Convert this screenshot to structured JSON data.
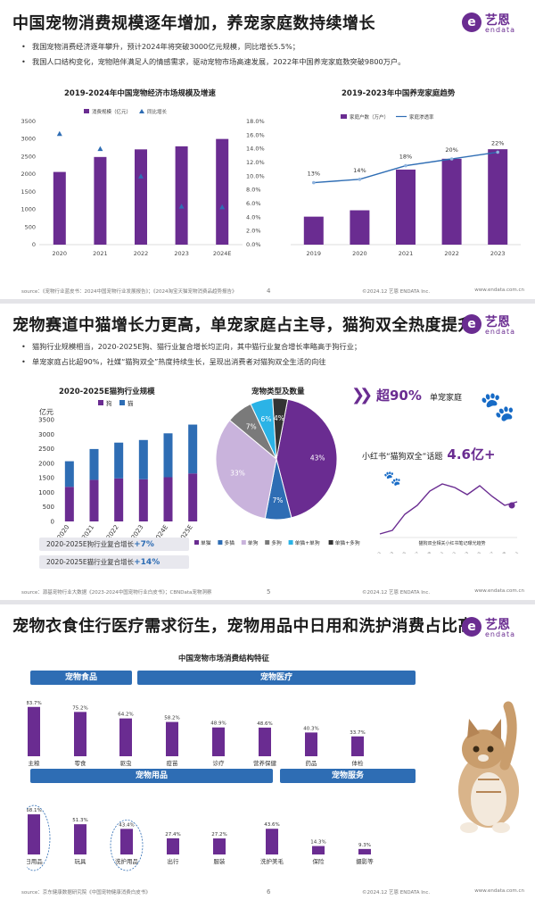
{
  "brand": {
    "mark": "e",
    "cn": "艺恩",
    "en": "endata"
  },
  "colors": {
    "purple": "#6a2c91",
    "blue": "#2e6db4",
    "lavender": "#c9b3dc",
    "gray": "#7a7a7a",
    "cyan": "#2bb3e6",
    "dark": "#333333"
  },
  "slide1": {
    "title": "中国宠物消费规模逐年增加，养宠家庭数持续增长",
    "bullets": [
      "我国宠物消费经济逐年攀升，预计2024年将突破3000亿元规模，同比增长5.5%；",
      "我国人口结构变化，宠物陪伴满足人的情感需求，驱动宠物市场高速发展，2022年中国养宠家庭数突破9800万户。"
    ],
    "footer": {
      "source": "source：《宠物行业蓝皮书：2024中国宠物行业发展报告》；《2024淘宝天猫宠物消费品趋势报告》",
      "page": "4",
      "copyright": "©2024.12  艺恩 ENDATA Inc.",
      "url": "www.endata.com.cn"
    }
  },
  "slide2": {
    "title": "宠物赛道中猫增长力更高，单宠家庭占主导，猫狗双全热度提升",
    "bullets": [
      "猫狗行业规模相当，2020-2025E狗、猫行业复合增长均正向，其中猫行业复合增长率略高于狗行业；",
      "单宠家庭占比超90%，社媒“猫狗双全”热度持续生长，呈现出消费者对猫狗双全生活的向往"
    ],
    "pills": [
      {
        "label": "2020-2025E狗行业复合增长",
        "value": "+7%"
      },
      {
        "label": "2020-2025E猫行业复合增长",
        "value": "+14%"
      }
    ],
    "callout": {
      "prefix": "超90%",
      "suffix": "单宠家庭"
    },
    "xhs": {
      "label": "小红书“猫狗双全”话题",
      "value": "4.6亿+",
      "trend_title": "猫狗双全相关小红书笔记曝光趋势",
      "trend_x": [
        "2023.01",
        "2023.03",
        "2023.05",
        "2023.07",
        "2023.09",
        "2023.11",
        "2024.01",
        "2024.03",
        "2024.05",
        "2024.07",
        "2024.09",
        "2024.11"
      ]
    },
    "footer": {
      "source": "source：源基宠物行业大数据《2023-2024中国宠物行业白皮书》；CBNData宠物洞察",
      "page": "5",
      "copyright": "©2024.12  艺恩 ENDATA Inc.",
      "url": "www.endata.com.cn"
    }
  },
  "slide3": {
    "title": "宠物衣食住行医疗需求衍生，宠物用品中日用和洗护消费占比高",
    "groups": [
      "宠物食品",
      "宠物医疗",
      "宠物用品",
      "宠物服务"
    ],
    "footer": {
      "source": "source：京东健康数据研究院《中国宠物健康消费白皮书》",
      "page": "6",
      "copyright": "©2024.12  艺恩 ENDATA Inc.",
      "url": "www.endata.com.cn"
    }
  },
  "chart_data": [
    {
      "type": "bar",
      "title": "2019-2024年中国宠物经济市场规模及增速",
      "categories": [
        "2020",
        "2021",
        "2022",
        "2023",
        "2024E"
      ],
      "series": [
        {
          "name": "消费规模（亿元）",
          "values": [
            2065,
            2490,
            2706,
            2793,
            3002
          ],
          "axis": "left"
        },
        {
          "name": "同比增长",
          "values": [
            16.2,
            14.0,
            10.0,
            5.6,
            5.5
          ],
          "axis": "right",
          "mark": "triangle"
        }
      ],
      "yticks": [
        "0",
        "500",
        "1000",
        "1500",
        "2000",
        "2500",
        "3000",
        "3500"
      ],
      "y2ticks": [
        "0.0%",
        "2.0%",
        "4.0%",
        "6.0%",
        "8.0%",
        "10.0%",
        "12.0%",
        "14.0%",
        "16.0%",
        "18.0%"
      ],
      "ylim": [
        0,
        3500
      ],
      "y2lim": [
        0,
        18
      ]
    },
    {
      "type": "bar",
      "title": "2019-2023年中国养宠家庭趋势",
      "categories": [
        "2019",
        "2020",
        "2021",
        "2022",
        "2023"
      ],
      "series": [
        {
          "name": "家庭户数（万户）",
          "values": [
            4400,
            5400,
            11800,
            13500,
            15000
          ],
          "axis": "left"
        },
        {
          "name": "家庭渗透率",
          "values": [
            13,
            14,
            18,
            20,
            22
          ],
          "axis": "right",
          "mark": "line"
        }
      ],
      "data_labels": [
        "13%",
        "14%",
        "18%",
        "20%",
        "22%"
      ]
    },
    {
      "type": "bar",
      "title": "2020-2025E猫狗行业规模",
      "ylabel": "亿元",
      "categories": [
        "2020",
        "2021",
        "2022",
        "2023",
        "2024E",
        "2025E"
      ],
      "series": [
        {
          "name": "狗",
          "values": [
            1190,
            1430,
            1480,
            1450,
            1520,
            1650
          ]
        },
        {
          "name": "猫",
          "values": [
            880,
            1060,
            1230,
            1350,
            1510,
            1680
          ]
        }
      ],
      "stacked": true,
      "yticks": [
        "0",
        "500",
        "1000",
        "1500",
        "2000",
        "2500",
        "3000",
        "3500"
      ],
      "ylim": [
        0,
        3500
      ]
    },
    {
      "type": "pie",
      "title": "宠物类型及数量",
      "series": [
        {
          "name": "单猫",
          "value": 43,
          "label": "43%"
        },
        {
          "name": "多猫",
          "value": 7,
          "label": "7%"
        },
        {
          "name": "单狗",
          "value": 33,
          "label": "33%"
        },
        {
          "name": "多狗",
          "value": 7,
          "label": "7%"
        },
        {
          "name": "单猫+单狗",
          "value": 6,
          "label": "6%"
        },
        {
          "name": "单猫+多狗",
          "value": 4,
          "label": "4%"
        }
      ]
    },
    {
      "type": "bar",
      "title": "中国宠物市场消费结构特征",
      "groups": [
        {
          "name": "宠物食品",
          "items": [
            {
              "name": "主粮",
              "value": 83.7
            },
            {
              "name": "零食",
              "value": 75.2
            }
          ]
        },
        {
          "name": "宠物医疗",
          "items": [
            {
              "name": "驱虫",
              "value": 64.2
            },
            {
              "name": "疫苗",
              "value": 58.2
            },
            {
              "name": "诊疗",
              "value": 48.9
            },
            {
              "name": "营养保健",
              "value": 48.6
            },
            {
              "name": "药品",
              "value": 40.3
            },
            {
              "name": "体检",
              "value": 33.7
            }
          ]
        },
        {
          "name": "宠物用品",
          "items": [
            {
              "name": "日用品",
              "value": 68.1
            },
            {
              "name": "玩具",
              "value": 51.3
            },
            {
              "name": "洗护用品",
              "value": 43.4
            },
            {
              "name": "出行",
              "value": 27.4
            },
            {
              "name": "服装",
              "value": 27.2
            }
          ]
        },
        {
          "name": "宠物服务",
          "items": [
            {
              "name": "洗护美毛",
              "value": 43.6
            },
            {
              "name": "保险",
              "value": 14.3
            },
            {
              "name": "摄影等",
              "value": 9.3
            }
          ]
        }
      ]
    }
  ]
}
